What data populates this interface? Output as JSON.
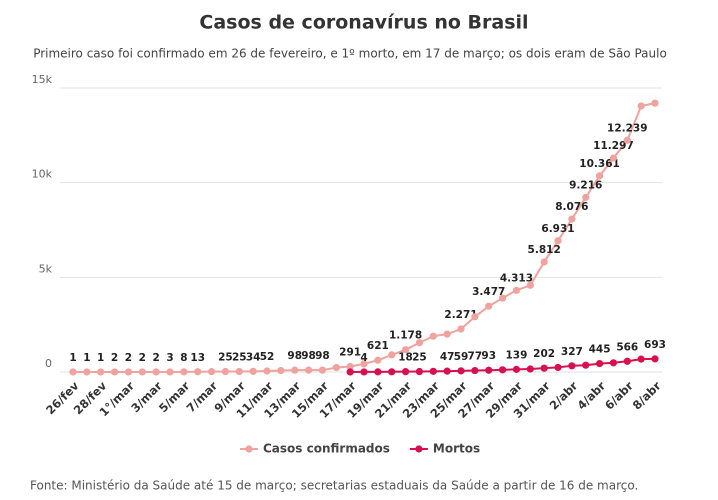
{
  "chart_data": {
    "type": "line",
    "title": "Casos de coronavírus no Brasil",
    "subtitle": "Primeiro caso foi confirmado em 26 de fevereiro, e 1º morto, em 17 de março; os dois eram de São Paulo",
    "source": "Fonte: Ministério da Saúde até 15 de março; secretarias estaduais da Saúde a partir de 16 de março.",
    "categories": [
      "26/fev",
      null,
      "28/fev",
      null,
      "1°/mar",
      null,
      "3/mar",
      null,
      "5/mar",
      null,
      "7/mar",
      null,
      "9/mar",
      null,
      "11/mar",
      null,
      "13/mar",
      null,
      "15/mar",
      null,
      "17/mar",
      null,
      "19/mar",
      null,
      "21/mar",
      null,
      "23/mar",
      null,
      "25/mar",
      null,
      "27/mar",
      null,
      "29/mar",
      null,
      "31/mar",
      null,
      "2/abr",
      null,
      "4/abr",
      null,
      "6/abr",
      null,
      "8/abr"
    ],
    "series": [
      {
        "name": "Casos confirmados",
        "color": "#f0a29e",
        "values": [
          1,
          1,
          1,
          2,
          2,
          2,
          2,
          3,
          8,
          13,
          19,
          25,
          25,
          34,
          52,
          77,
          98,
          98,
          98,
          234,
          291,
          428,
          621,
          904,
          1178,
          1546,
          1891,
          2000,
          2271,
          2915,
          3477,
          3904,
          4313,
          4579,
          5812,
          6931,
          8076,
          9216,
          10361,
          11297,
          12239,
          14050,
          14200
        ],
        "value_labels": [
          "1",
          "1",
          "1",
          "2",
          "2",
          "2",
          "2",
          "3",
          "8",
          "13",
          null,
          "25",
          "25",
          "34",
          "52",
          null,
          "98",
          "98",
          "98",
          null,
          "291",
          null,
          "621",
          null,
          "1.178",
          null,
          null,
          null,
          "2.271",
          null,
          "3.477",
          null,
          "4.313",
          null,
          "5.812",
          "6.931",
          "8.076",
          "9.216",
          "10.361",
          "11.297",
          "12.239",
          null,
          null
        ]
      },
      {
        "name": "Mortos",
        "color": "#d7114f",
        "values": [
          null,
          null,
          null,
          null,
          null,
          null,
          null,
          null,
          null,
          null,
          null,
          null,
          null,
          null,
          null,
          null,
          null,
          null,
          null,
          null,
          1,
          4,
          7,
          11,
          18,
          25,
          34,
          47,
          59,
          77,
          93,
          114,
          139,
          159,
          202,
          241,
          327,
          359,
          445,
          486,
          566,
          680,
          693
        ],
        "value_labels": [
          null,
          null,
          null,
          null,
          null,
          null,
          null,
          null,
          null,
          null,
          null,
          null,
          null,
          null,
          null,
          null,
          null,
          null,
          null,
          null,
          null,
          "4",
          null,
          null,
          "18",
          "25",
          null,
          "47",
          "59",
          "77",
          "93",
          null,
          "139",
          null,
          "202",
          null,
          "327",
          null,
          "445",
          null,
          "566",
          null,
          "693"
        ]
      }
    ],
    "ylim": [
      0,
      15000
    ],
    "yticks": [
      {
        "value": 0,
        "label": "0"
      },
      {
        "value": 5000,
        "label": "5k"
      },
      {
        "value": 10000,
        "label": "10k"
      },
      {
        "value": 15000,
        "label": "15k"
      }
    ],
    "grid": true,
    "legend": "bottom"
  }
}
